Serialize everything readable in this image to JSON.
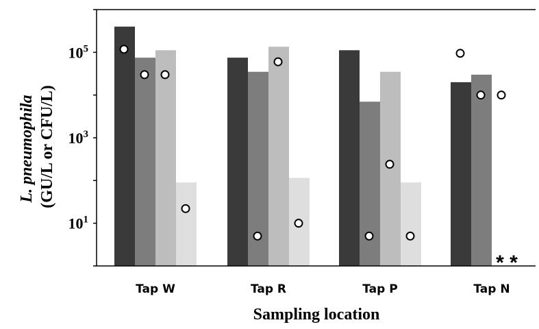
{
  "chart_data": {
    "type": "bar",
    "scale": "log",
    "categories": [
      "Tap W",
      "Tap R",
      "Tap P",
      "Tap N"
    ],
    "yticks": [
      {
        "value": 10,
        "label": "10",
        "sup": "1"
      },
      {
        "value": 1000,
        "label": "10",
        "sup": "3"
      },
      {
        "value": 100000,
        "label": "10",
        "sup": "5"
      }
    ],
    "ylim": [
      1,
      1000000
    ],
    "ylabel_line1": "L. pneumophila",
    "ylabel_line2": "(GU/L or CFU/L)",
    "xlabel": "Sampling location",
    "series_colors": [
      "#3a3a3a",
      "#7d7d7d",
      "#bdbdbd",
      "#dedede"
    ],
    "series": [
      {
        "bars": [
          400000,
          75000,
          112000,
          20000
        ],
        "points": [
          118000,
          null,
          null,
          95000
        ]
      },
      {
        "bars": [
          75000,
          35000,
          7000,
          30000
        ],
        "points": [
          30000,
          5,
          5,
          10000
        ]
      },
      {
        "bars": [
          112000,
          135000,
          35000,
          null
        ],
        "points": [
          30000,
          60000,
          240,
          10000
        ]
      },
      {
        "bars": [
          90,
          115,
          90,
          null
        ],
        "points": [
          22,
          10,
          5,
          null
        ]
      }
    ],
    "annotations": [
      {
        "category": "Tap N",
        "text": "* *"
      }
    ]
  }
}
